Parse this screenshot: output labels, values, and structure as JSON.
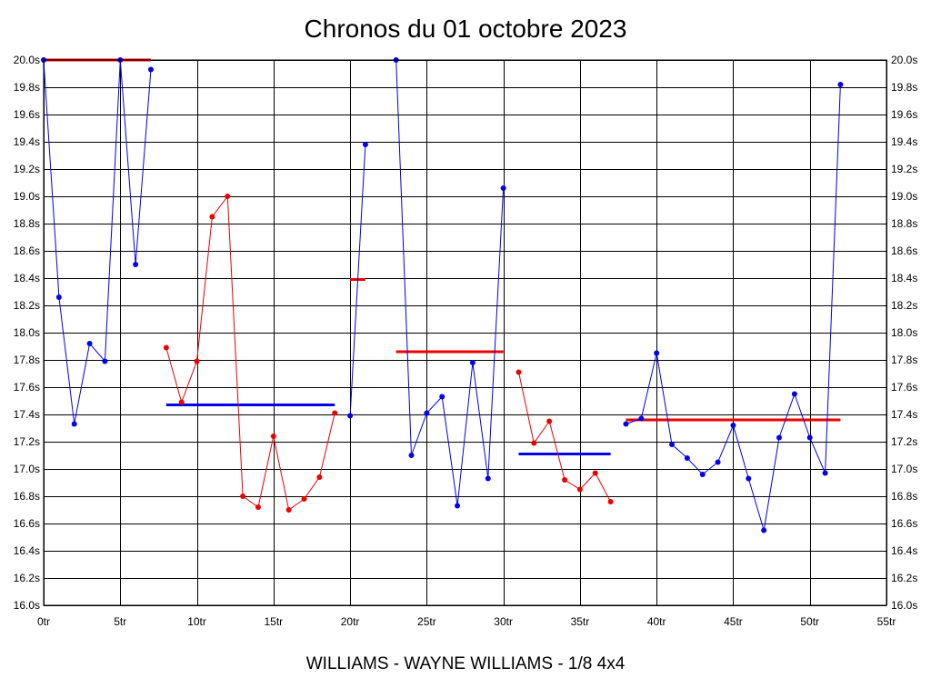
{
  "chart_data": {
    "type": "line",
    "title": "Chronos du 01 octobre 2023",
    "subtitle": "WILLIAMS - WAYNE WILLIAMS - 1/8 4x4",
    "xlim": [
      0,
      55
    ],
    "ylim": [
      16.0,
      20.0
    ],
    "x_ticks": [
      0,
      5,
      10,
      15,
      20,
      25,
      30,
      35,
      40,
      45,
      50,
      55
    ],
    "x_tick_labels": [
      "0tr",
      "5tr",
      "10tr",
      "15tr",
      "20tr",
      "25tr",
      "30tr",
      "35tr",
      "40tr",
      "45tr",
      "50tr",
      "55tr"
    ],
    "y_ticks": [
      16.0,
      16.2,
      16.4,
      16.6,
      16.8,
      17.0,
      17.2,
      17.4,
      17.6,
      17.8,
      18.0,
      18.2,
      18.4,
      18.6,
      18.8,
      19.0,
      19.2,
      19.4,
      19.6,
      19.8,
      20.0
    ],
    "y_tick_labels": [
      "16.0s",
      "16.2s",
      "16.4s",
      "16.6s",
      "16.8s",
      "17.0s",
      "17.2s",
      "17.4s",
      "17.6s",
      "17.8s",
      "18.0s",
      "18.2s",
      "18.4s",
      "18.6s",
      "18.8s",
      "19.0s",
      "19.2s",
      "19.4s",
      "19.6s",
      "19.8s",
      "20.0s"
    ],
    "grid": true,
    "y_axis_both_sides": true,
    "series": [
      {
        "color": "#0000ee",
        "points": [
          [
            0,
            20.0
          ],
          [
            1,
            18.26
          ],
          [
            2,
            17.33
          ],
          [
            3,
            17.92
          ],
          [
            4,
            17.79
          ],
          [
            5,
            20.0
          ],
          [
            6,
            18.5
          ],
          [
            7,
            19.93
          ]
        ]
      },
      {
        "color": "#ee0000",
        "points": [
          [
            8,
            17.89
          ],
          [
            9,
            17.49
          ],
          [
            10,
            17.79
          ],
          [
            11,
            18.85
          ],
          [
            12,
            19.0
          ],
          [
            13,
            16.8
          ],
          [
            14,
            16.72
          ],
          [
            15,
            17.24
          ],
          [
            16,
            16.7
          ],
          [
            17,
            16.78
          ],
          [
            18,
            16.94
          ],
          [
            19,
            17.41
          ]
        ]
      },
      {
        "color": "#0000ee",
        "points": [
          [
            20,
            17.39
          ],
          [
            21,
            19.38
          ]
        ]
      },
      {
        "color": "#0000ee",
        "points": [
          [
            23,
            20.0
          ],
          [
            24,
            17.1
          ],
          [
            25,
            17.41
          ],
          [
            26,
            17.53
          ],
          [
            27,
            16.73
          ],
          [
            28,
            17.78
          ],
          [
            29,
            16.93
          ],
          [
            30,
            19.06
          ]
        ]
      },
      {
        "color": "#ee0000",
        "points": [
          [
            31,
            17.71
          ],
          [
            32,
            17.19
          ],
          [
            33,
            17.35
          ],
          [
            34,
            16.92
          ],
          [
            35,
            16.85
          ],
          [
            36,
            16.97
          ],
          [
            37,
            16.76
          ]
        ]
      },
      {
        "color": "#0000ee",
        "points": [
          [
            38,
            17.33
          ],
          [
            39,
            17.37
          ],
          [
            40,
            17.85
          ],
          [
            41,
            17.18
          ],
          [
            42,
            17.08
          ],
          [
            43,
            16.96
          ],
          [
            44,
            17.05
          ],
          [
            45,
            17.32
          ],
          [
            46,
            16.93
          ],
          [
            47,
            16.55
          ],
          [
            48,
            17.23
          ],
          [
            49,
            17.55
          ],
          [
            50,
            17.23
          ],
          [
            51,
            16.97
          ],
          [
            52,
            19.82
          ]
        ]
      }
    ],
    "average_lines": [
      {
        "color": "#ee0000",
        "x": [
          0,
          7
        ],
        "y": 20.0
      },
      {
        "color": "#0000ee",
        "x": [
          8,
          19
        ],
        "y": 17.47
      },
      {
        "color": "#ee0000",
        "x": [
          20,
          21
        ],
        "y": 18.39
      },
      {
        "color": "#ee0000",
        "x": [
          23,
          30
        ],
        "y": 17.86
      },
      {
        "color": "#0000ee",
        "x": [
          31,
          37
        ],
        "y": 17.11
      },
      {
        "color": "#ee0000",
        "x": [
          38,
          52
        ],
        "y": 17.36
      }
    ]
  }
}
